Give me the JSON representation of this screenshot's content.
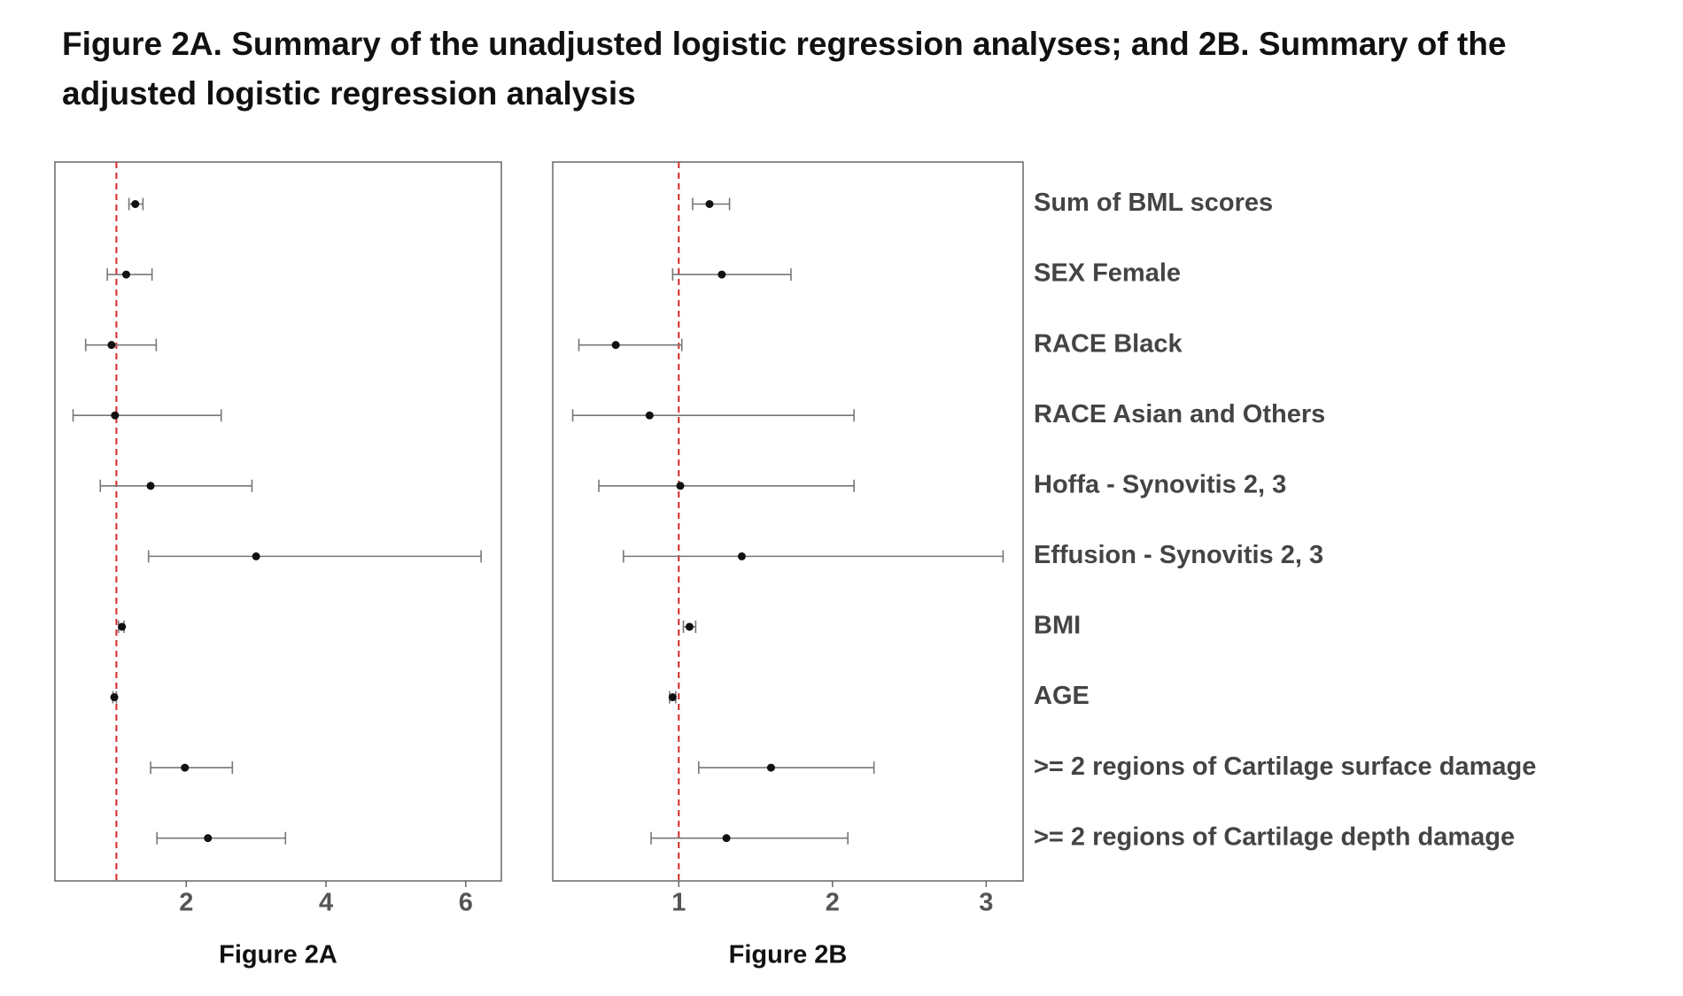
{
  "title": "Figure 2A. Summary of the unadjusted logistic regression analyses; and 2B. Summary of the adjusted logistic regression analysis",
  "chart_data": [
    {
      "type": "forest",
      "caption": "Figure 2A",
      "values": [
        1.27,
        1.14,
        0.93,
        0.98,
        1.49,
        3.0,
        1.08,
        0.97,
        1.98,
        2.31
      ],
      "lower": [
        1.18,
        0.87,
        0.56,
        0.38,
        0.77,
        1.46,
        1.03,
        0.95,
        1.49,
        1.58
      ],
      "upper": [
        1.38,
        1.51,
        1.57,
        2.5,
        2.94,
        6.22,
        1.11,
        1.0,
        2.66,
        3.42
      ],
      "color": "#111111",
      "whisker_color": "#777777",
      "reference_line": 1,
      "reference_color": "#d62728",
      "xlim": [
        0.12,
        6.51
      ],
      "xticks": [
        2,
        4,
        6
      ]
    },
    {
      "type": "forest",
      "caption": "Figure 2B",
      "categories": [
        "Sum of BML scores",
        "SEX Female",
        "RACE Black",
        "RACE Asian and Others",
        "Hoffa - Synovitis 2, 3",
        "Effusion - Synovitis 2, 3",
        "BMI",
        "AGE",
        ">= 2 regions of Cartilage surface damage",
        ">= 2 regions of Cartilage depth damage"
      ],
      "values": [
        1.2,
        1.28,
        0.59,
        0.81,
        1.01,
        1.41,
        1.07,
        0.96,
        1.6,
        1.31
      ],
      "lower": [
        1.09,
        0.96,
        0.35,
        0.31,
        0.48,
        0.64,
        1.03,
        0.94,
        1.13,
        0.82
      ],
      "upper": [
        1.33,
        1.73,
        1.02,
        2.14,
        2.14,
        3.11,
        1.11,
        0.98,
        2.27,
        2.1
      ],
      "color": "#111111",
      "whisker_color": "#777777",
      "reference_line": 1,
      "reference_color": "#d62728",
      "xlim": [
        0.18,
        3.24
      ],
      "xticks": [
        1,
        2,
        3
      ]
    }
  ]
}
